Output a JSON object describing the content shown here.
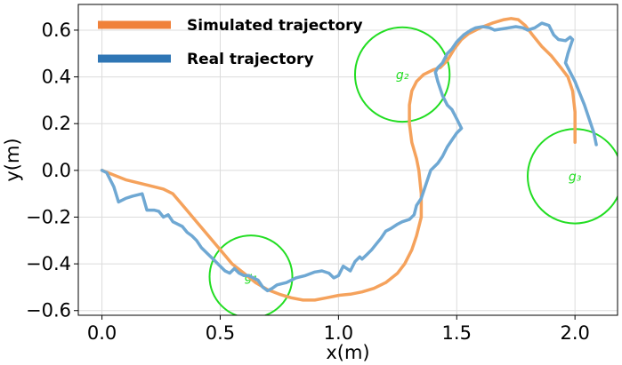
{
  "chart_data": {
    "type": "line",
    "title": "",
    "xlabel": "x(m)",
    "ylabel": "y(m)",
    "xlim": [
      -0.1,
      2.18
    ],
    "ylim": [
      -0.62,
      0.71
    ],
    "grid": true,
    "xticks": [
      0.0,
      0.5,
      1.0,
      1.5,
      2.0
    ],
    "xtick_labels": [
      "0.0",
      "0.5",
      "1.0",
      "1.5",
      "2.0"
    ],
    "yticks": [
      0.6,
      0.4,
      0.2,
      0.0,
      -0.2,
      -0.4,
      -0.6
    ],
    "ytick_labels": [
      "0.6",
      "0.4",
      "0.2",
      "0.0",
      "−0.2",
      "−0.4",
      "−0.6"
    ],
    "legend_position": "top-left",
    "series": [
      {
        "name": "Simulated trajectory",
        "color": "#f5a25c",
        "legend_color": "#f0813a",
        "points": [
          [
            0.0,
            0.0
          ],
          [
            0.1,
            -0.04
          ],
          [
            0.2,
            -0.065
          ],
          [
            0.26,
            -0.08
          ],
          [
            0.3,
            -0.1
          ],
          [
            0.35,
            -0.16
          ],
          [
            0.4,
            -0.22
          ],
          [
            0.45,
            -0.28
          ],
          [
            0.5,
            -0.34
          ],
          [
            0.55,
            -0.4
          ],
          [
            0.6,
            -0.44
          ],
          [
            0.65,
            -0.48
          ],
          [
            0.7,
            -0.51
          ],
          [
            0.75,
            -0.53
          ],
          [
            0.8,
            -0.545
          ],
          [
            0.85,
            -0.555
          ],
          [
            0.9,
            -0.555
          ],
          [
            0.95,
            -0.545
          ],
          [
            1.0,
            -0.535
          ],
          [
            1.05,
            -0.53
          ],
          [
            1.1,
            -0.52
          ],
          [
            1.15,
            -0.505
          ],
          [
            1.2,
            -0.48
          ],
          [
            1.25,
            -0.44
          ],
          [
            1.28,
            -0.4
          ],
          [
            1.31,
            -0.34
          ],
          [
            1.33,
            -0.28
          ],
          [
            1.35,
            -0.2
          ],
          [
            1.35,
            -0.1
          ],
          [
            1.34,
            0.0
          ],
          [
            1.33,
            0.05
          ],
          [
            1.31,
            0.12
          ],
          [
            1.3,
            0.2
          ],
          [
            1.3,
            0.28
          ],
          [
            1.31,
            0.34
          ],
          [
            1.33,
            0.38
          ],
          [
            1.36,
            0.41
          ],
          [
            1.4,
            0.43
          ],
          [
            1.43,
            0.44
          ],
          [
            1.46,
            0.47
          ],
          [
            1.49,
            0.52
          ],
          [
            1.52,
            0.56
          ],
          [
            1.55,
            0.585
          ],
          [
            1.6,
            0.61
          ],
          [
            1.65,
            0.63
          ],
          [
            1.7,
            0.645
          ],
          [
            1.73,
            0.65
          ],
          [
            1.76,
            0.645
          ],
          [
            1.79,
            0.62
          ],
          [
            1.82,
            0.58
          ],
          [
            1.86,
            0.53
          ],
          [
            1.9,
            0.49
          ],
          [
            1.94,
            0.44
          ],
          [
            1.97,
            0.4
          ],
          [
            1.99,
            0.34
          ],
          [
            2.0,
            0.25
          ],
          [
            2.0,
            0.12
          ]
        ]
      },
      {
        "name": "Real trajectory",
        "color": "#6fa8d3",
        "legend_color": "#2f76b5",
        "points": [
          [
            0.0,
            0.0
          ],
          [
            0.02,
            -0.01
          ],
          [
            0.05,
            -0.07
          ],
          [
            0.07,
            -0.135
          ],
          [
            0.1,
            -0.12
          ],
          [
            0.13,
            -0.11
          ],
          [
            0.17,
            -0.1
          ],
          [
            0.19,
            -0.17
          ],
          [
            0.22,
            -0.17
          ],
          [
            0.24,
            -0.175
          ],
          [
            0.26,
            -0.2
          ],
          [
            0.28,
            -0.19
          ],
          [
            0.3,
            -0.22
          ],
          [
            0.34,
            -0.24
          ],
          [
            0.36,
            -0.265
          ],
          [
            0.38,
            -0.28
          ],
          [
            0.4,
            -0.3
          ],
          [
            0.42,
            -0.33
          ],
          [
            0.45,
            -0.36
          ],
          [
            0.47,
            -0.38
          ],
          [
            0.5,
            -0.41
          ],
          [
            0.52,
            -0.43
          ],
          [
            0.54,
            -0.44
          ],
          [
            0.56,
            -0.42
          ],
          [
            0.58,
            -0.44
          ],
          [
            0.6,
            -0.45
          ],
          [
            0.62,
            -0.45
          ],
          [
            0.64,
            -0.46
          ],
          [
            0.66,
            -0.47
          ],
          [
            0.68,
            -0.5
          ],
          [
            0.7,
            -0.515
          ],
          [
            0.72,
            -0.505
          ],
          [
            0.74,
            -0.49
          ],
          [
            0.78,
            -0.48
          ],
          [
            0.82,
            -0.46
          ],
          [
            0.86,
            -0.45
          ],
          [
            0.9,
            -0.435
          ],
          [
            0.93,
            -0.43
          ],
          [
            0.96,
            -0.44
          ],
          [
            0.98,
            -0.46
          ],
          [
            1.0,
            -0.45
          ],
          [
            1.02,
            -0.41
          ],
          [
            1.05,
            -0.43
          ],
          [
            1.07,
            -0.39
          ],
          [
            1.09,
            -0.37
          ],
          [
            1.1,
            -0.38
          ],
          [
            1.12,
            -0.36
          ],
          [
            1.14,
            -0.34
          ],
          [
            1.16,
            -0.315
          ],
          [
            1.18,
            -0.29
          ],
          [
            1.2,
            -0.26
          ],
          [
            1.22,
            -0.25
          ],
          [
            1.25,
            -0.23
          ],
          [
            1.27,
            -0.22
          ],
          [
            1.3,
            -0.21
          ],
          [
            1.32,
            -0.19
          ],
          [
            1.33,
            -0.15
          ],
          [
            1.35,
            -0.12
          ],
          [
            1.37,
            -0.06
          ],
          [
            1.39,
            0.0
          ],
          [
            1.42,
            0.03
          ],
          [
            1.44,
            0.06
          ],
          [
            1.46,
            0.1
          ],
          [
            1.48,
            0.13
          ],
          [
            1.5,
            0.16
          ],
          [
            1.52,
            0.18
          ],
          [
            1.5,
            0.22
          ],
          [
            1.48,
            0.26
          ],
          [
            1.46,
            0.28
          ],
          [
            1.44,
            0.32
          ],
          [
            1.42,
            0.38
          ],
          [
            1.41,
            0.42
          ],
          [
            1.42,
            0.44
          ],
          [
            1.44,
            0.46
          ],
          [
            1.46,
            0.5
          ],
          [
            1.48,
            0.52
          ],
          [
            1.5,
            0.55
          ],
          [
            1.53,
            0.58
          ],
          [
            1.56,
            0.6
          ],
          [
            1.58,
            0.61
          ],
          [
            1.61,
            0.615
          ],
          [
            1.64,
            0.61
          ],
          [
            1.66,
            0.6
          ],
          [
            1.69,
            0.605
          ],
          [
            1.72,
            0.61
          ],
          [
            1.75,
            0.615
          ],
          [
            1.78,
            0.61
          ],
          [
            1.8,
            0.6
          ],
          [
            1.83,
            0.61
          ],
          [
            1.86,
            0.63
          ],
          [
            1.89,
            0.62
          ],
          [
            1.91,
            0.58
          ],
          [
            1.93,
            0.56
          ],
          [
            1.96,
            0.555
          ],
          [
            1.98,
            0.57
          ],
          [
            1.99,
            0.56
          ],
          [
            1.98,
            0.53
          ],
          [
            1.97,
            0.5
          ],
          [
            1.96,
            0.46
          ],
          [
            1.98,
            0.42
          ],
          [
            2.0,
            0.38
          ],
          [
            2.02,
            0.33
          ],
          [
            2.04,
            0.28
          ],
          [
            2.06,
            0.22
          ],
          [
            2.08,
            0.16
          ],
          [
            2.09,
            0.11
          ]
        ]
      }
    ],
    "goals": [
      {
        "label": "g₁",
        "x": 0.63,
        "y": -0.455,
        "r": 0.175,
        "color": "#22dd22"
      },
      {
        "label": "g₂",
        "x": 1.27,
        "y": 0.41,
        "r": 0.2,
        "color": "#22dd22"
      },
      {
        "label": "g₃",
        "x": 2.0,
        "y": -0.025,
        "r": 0.2,
        "color": "#22dd22"
      }
    ]
  }
}
